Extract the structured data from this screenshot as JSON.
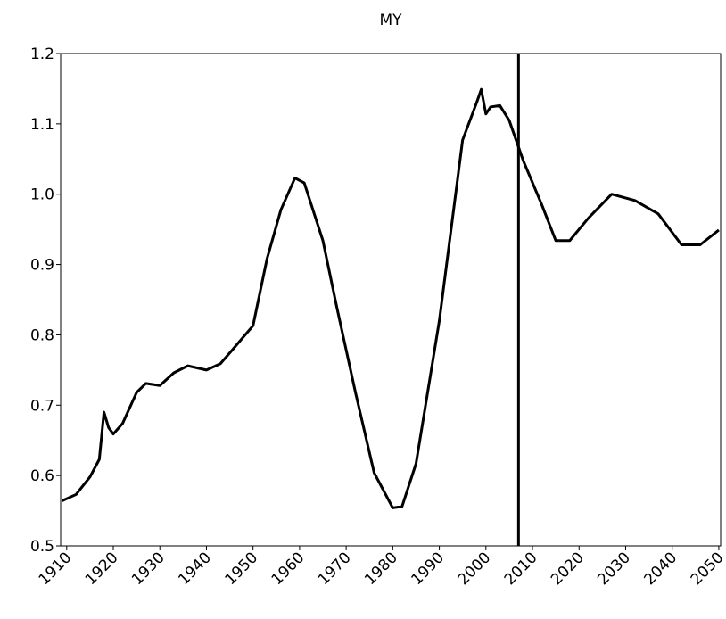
{
  "chart_data": {
    "type": "line",
    "title": "MY",
    "x": [
      1909,
      1912,
      1915,
      1917,
      1918,
      1919,
      1920,
      1922,
      1925,
      1927,
      1930,
      1933,
      1936,
      1940,
      1943,
      1946,
      1950,
      1953,
      1956,
      1959,
      1961,
      1965,
      1968,
      1972,
      1976,
      1980,
      1982,
      1985,
      1990,
      1995,
      1998,
      1999,
      2000,
      2001,
      2003,
      2005,
      2008,
      2012,
      2015,
      2018,
      2022,
      2027,
      2032,
      2037,
      2042,
      2046,
      2050
    ],
    "series": [
      {
        "color": "#000000",
        "values": [
          0.564,
          0.573,
          0.598,
          0.623,
          0.69,
          0.668,
          0.659,
          0.674,
          0.718,
          0.731,
          0.728,
          0.746,
          0.756,
          0.75,
          0.759,
          0.782,
          0.813,
          0.908,
          0.978,
          1.023,
          1.016,
          0.934,
          0.839,
          0.718,
          0.604,
          0.554,
          0.556,
          0.617,
          0.82,
          1.077,
          1.13,
          1.149,
          1.114,
          1.124,
          1.126,
          1.105,
          1.048,
          0.985,
          0.934,
          0.934,
          0.966,
          1.0,
          0.991,
          0.972,
          0.928,
          0.928,
          0.949
        ]
      }
    ],
    "vline": 2007,
    "xlim": [
      1908.7,
      2050.4
    ],
    "xticks": [
      1910,
      1920,
      1930,
      1940,
      1950,
      1960,
      1970,
      1980,
      1990,
      2000,
      2010,
      2020,
      2030,
      2040,
      2050
    ],
    "ylim": [
      0.5,
      1.2
    ],
    "yticks": [
      0.5,
      0.6,
      0.7,
      0.8,
      0.9,
      {
        "value": 1.0,
        "label": "1.0"
      },
      1.1,
      1.2
    ]
  }
}
